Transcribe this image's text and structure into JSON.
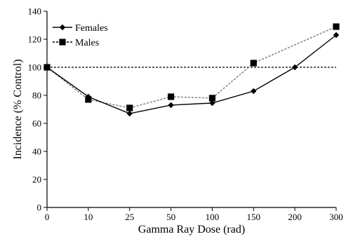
{
  "chart_data": {
    "type": "line",
    "title": "",
    "xlabel": "Gamma Ray Dose (rad)",
    "ylabel": "Incidence (% Control)",
    "categories": [
      "0",
      "10",
      "25",
      "50",
      "100",
      "150",
      "200",
      "300"
    ],
    "ylim": [
      0,
      140
    ],
    "yticks": [
      0,
      20,
      40,
      60,
      80,
      100,
      120,
      140
    ],
    "grid": false,
    "legend_position": "top-left",
    "reference_line": {
      "y": 100,
      "style": "dashed"
    },
    "series": [
      {
        "name": "Females",
        "marker": "diamond",
        "line_style": "solid",
        "color": "#000000",
        "values": [
          100,
          79,
          67,
          73,
          74.5,
          83,
          100,
          123
        ]
      },
      {
        "name": "Males",
        "marker": "square",
        "line_style": "dashed",
        "color": "#000000",
        "values": [
          100,
          77,
          71,
          79,
          78,
          103,
          null,
          129
        ]
      }
    ]
  }
}
